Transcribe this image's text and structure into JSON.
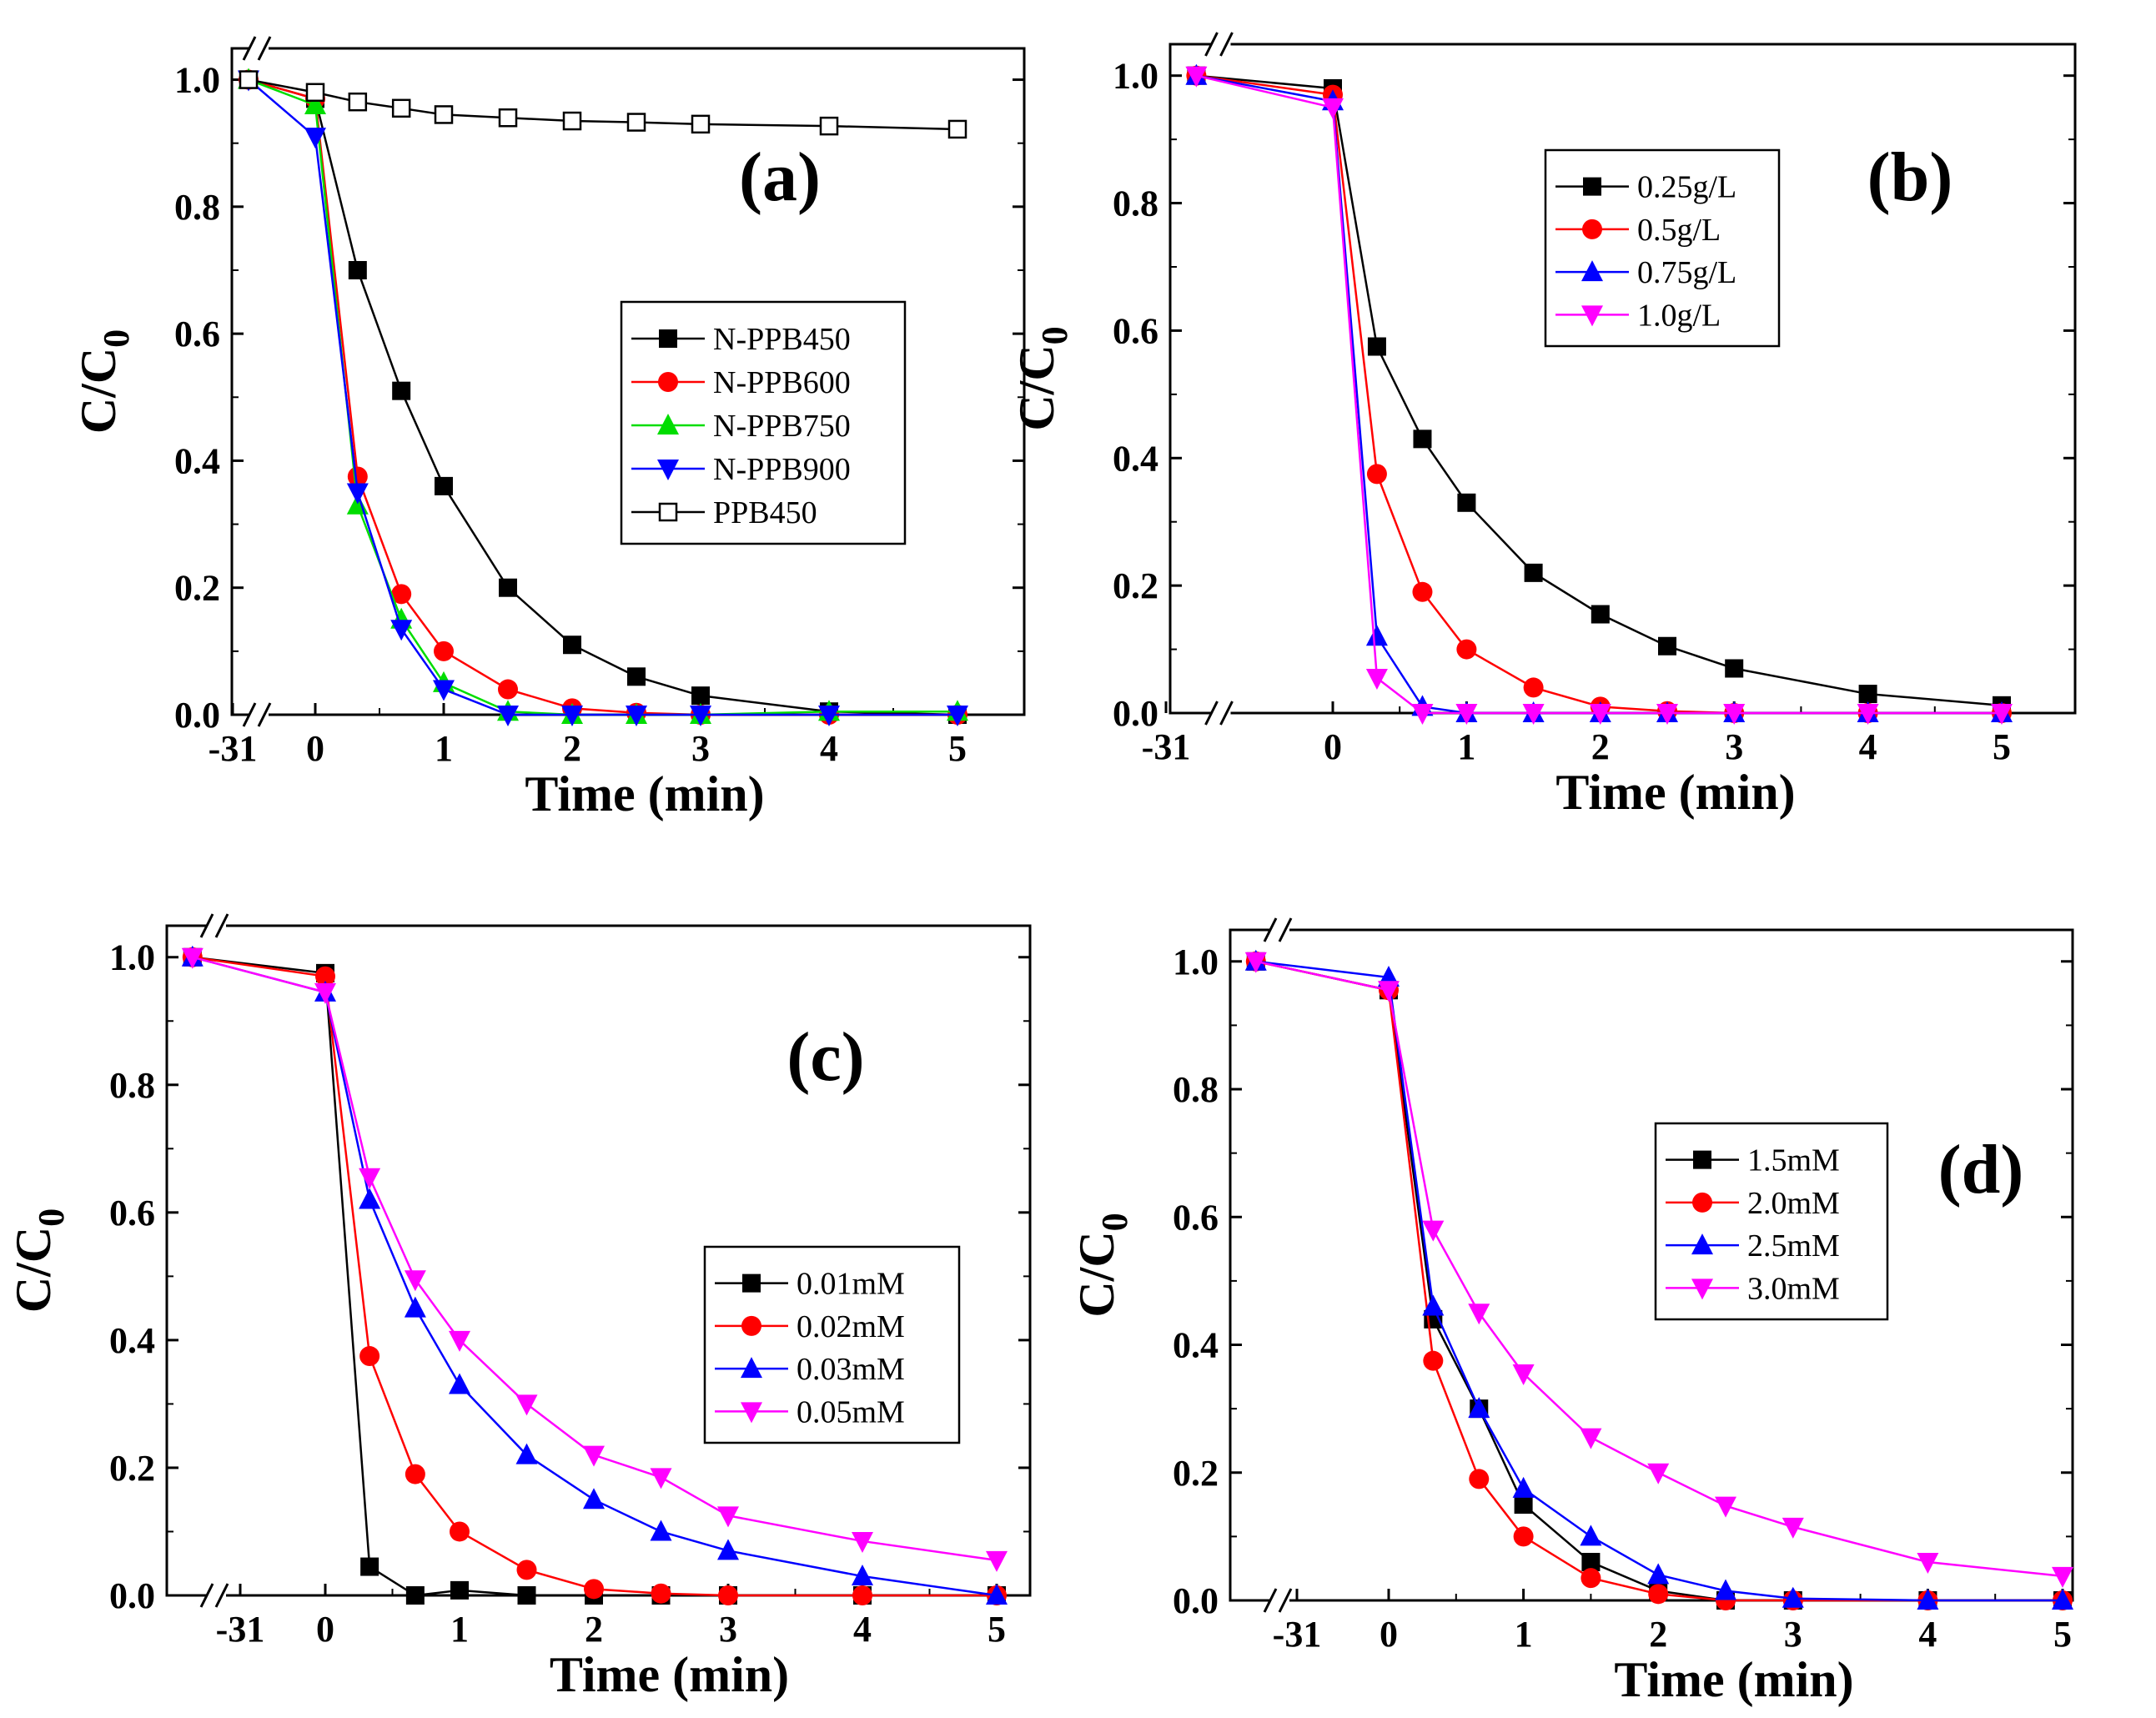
{
  "figure": {
    "panels": [
      "(a)",
      "(b)",
      "(c)",
      "(d)"
    ]
  },
  "chart_data": [
    {
      "type": "line",
      "panel_label": "(a)",
      "xlabel": "Time (min)",
      "ylabel_main": "C/C",
      "ylabel_sub": "0",
      "x_tick_labels": [
        "-31",
        "0",
        "1",
        "2",
        "3",
        "4",
        "5"
      ],
      "y_tick_labels": [
        "0.0",
        "0.2",
        "0.4",
        "0.6",
        "0.8",
        "1.0"
      ],
      "ylim": [
        0,
        1.0
      ],
      "axis_break": "between -31 and 0",
      "x": [
        -31,
        0,
        0.33,
        0.67,
        1,
        1.5,
        2,
        2.5,
        3,
        4,
        5
      ],
      "legend_position": "center-right",
      "series": [
        {
          "name": "N-PPB450",
          "color": "#000000",
          "marker": "square",
          "values": [
            1.0,
            0.97,
            0.7,
            0.51,
            0.36,
            0.2,
            0.11,
            0.06,
            0.03,
            0.005,
            0.0
          ]
        },
        {
          "name": "N-PPB600",
          "color": "#ff0000",
          "marker": "circle",
          "values": [
            1.0,
            0.97,
            0.375,
            0.19,
            0.1,
            0.04,
            0.01,
            0.003,
            0.0,
            0.0,
            0.0
          ]
        },
        {
          "name": "N-PPB750",
          "color": "#00dd00",
          "marker": "triangle-up",
          "values": [
            1.0,
            0.96,
            0.33,
            0.15,
            0.05,
            0.005,
            0.0,
            0.0,
            0.0,
            0.005,
            0.005
          ]
        },
        {
          "name": "N-PPB900",
          "color": "#0000ff",
          "marker": "triangle-down",
          "values": [
            1.0,
            0.91,
            0.35,
            0.135,
            0.04,
            0.0,
            0.0,
            0.0,
            0.0,
            0.0,
            0.0
          ]
        },
        {
          "name": "PPB450",
          "color": "#000000",
          "marker": "open-square",
          "values": [
            1.0,
            0.98,
            0.965,
            0.955,
            0.945,
            0.94,
            0.935,
            0.933,
            0.93,
            0.927,
            0.922
          ]
        }
      ]
    },
    {
      "type": "line",
      "panel_label": "(b)",
      "xlabel": "Time (min)",
      "ylabel_main": "C/C",
      "ylabel_sub": "0",
      "x_tick_labels": [
        "-31",
        "0",
        "1",
        "2",
        "3",
        "4",
        "5"
      ],
      "y_tick_labels": [
        "0.0",
        "0.2",
        "0.4",
        "0.6",
        "0.8",
        "1.0"
      ],
      "ylim": [
        0,
        1.0
      ],
      "axis_break": "between -31 and 0",
      "x": [
        -31,
        0,
        0.33,
        0.67,
        1,
        1.5,
        2,
        2.5,
        3,
        4,
        5
      ],
      "legend_position": "top-left",
      "series": [
        {
          "name": "0.25g/L",
          "color": "#000000",
          "marker": "square",
          "values": [
            1.0,
            0.98,
            0.575,
            0.43,
            0.33,
            0.22,
            0.155,
            0.105,
            0.07,
            0.03,
            0.012
          ]
        },
        {
          "name": "0.5g/L",
          "color": "#ff0000",
          "marker": "circle",
          "values": [
            1.0,
            0.97,
            0.375,
            0.19,
            0.1,
            0.04,
            0.01,
            0.003,
            0.0,
            0.0,
            0.0
          ]
        },
        {
          "name": "0.75g/L",
          "color": "#0000ff",
          "marker": "triangle-up",
          "values": [
            1.0,
            0.96,
            0.12,
            0.01,
            0.0,
            0.0,
            0.0,
            0.0,
            0.0,
            0.0,
            0.0
          ]
        },
        {
          "name": "1.0g/L",
          "color": "#ff00ff",
          "marker": "triangle-down",
          "values": [
            1.0,
            0.95,
            0.055,
            0.0,
            0.0,
            0.0,
            0.0,
            0.0,
            0.0,
            0.0,
            0.0
          ]
        }
      ]
    },
    {
      "type": "line",
      "panel_label": "(c)",
      "xlabel": "Time (min)",
      "ylabel_main": "C/C",
      "ylabel_sub": "0",
      "x_tick_labels": [
        "-31",
        "0",
        "1",
        "2",
        "3",
        "4",
        "5"
      ],
      "y_tick_labels": [
        "0.0",
        "0.2",
        "0.4",
        "0.6",
        "0.8",
        "1.0"
      ],
      "ylim": [
        0,
        1.0
      ],
      "axis_break": "between -31 and 0",
      "x": [
        -31,
        0,
        0.33,
        0.67,
        1,
        1.5,
        2,
        2.5,
        3,
        4,
        5
      ],
      "legend_position": "center-right",
      "series": [
        {
          "name": "0.01mM",
          "color": "#000000",
          "marker": "square",
          "values": [
            1.0,
            0.975,
            0.045,
            0.0,
            0.008,
            0.0,
            0.0,
            0.0,
            0.0,
            0.0,
            0.0
          ]
        },
        {
          "name": "0.02mM",
          "color": "#ff0000",
          "marker": "circle",
          "values": [
            1.0,
            0.97,
            0.375,
            0.19,
            0.1,
            0.04,
            0.01,
            0.003,
            0.0,
            0.0,
            0.0
          ]
        },
        {
          "name": "0.03mM",
          "color": "#0000ff",
          "marker": "triangle-up",
          "values": [
            1.0,
            0.945,
            0.62,
            0.45,
            0.33,
            0.22,
            0.15,
            0.1,
            0.07,
            0.03,
            0.0
          ]
        },
        {
          "name": "0.05mM",
          "color": "#ff00ff",
          "marker": "triangle-down",
          "values": [
            1.0,
            0.945,
            0.655,
            0.495,
            0.4,
            0.3,
            0.22,
            0.185,
            0.125,
            0.085,
            0.055
          ]
        }
      ]
    },
    {
      "type": "line",
      "panel_label": "(d)",
      "xlabel": "Time (min)",
      "ylabel_main": "C/C",
      "ylabel_sub": "0",
      "x_tick_labels": [
        "-31",
        "0",
        "1",
        "2",
        "3",
        "4",
        "5"
      ],
      "y_tick_labels": [
        "0.0",
        "0.2",
        "0.4",
        "0.6",
        "0.8",
        "1.0"
      ],
      "ylim": [
        0,
        1.0
      ],
      "axis_break": "between -31 and 0",
      "x": [
        -31,
        0,
        0.33,
        0.67,
        1,
        1.5,
        2,
        2.5,
        3,
        4,
        5
      ],
      "legend_position": "center-left",
      "series": [
        {
          "name": "1.5mM",
          "color": "#000000",
          "marker": "square",
          "values": [
            1.0,
            0.955,
            0.44,
            0.3,
            0.15,
            0.06,
            0.015,
            0.0,
            0.0,
            0.0,
            0.0
          ]
        },
        {
          "name": "2.0mM",
          "color": "#ff0000",
          "marker": "circle",
          "values": [
            1.0,
            0.955,
            0.375,
            0.19,
            0.1,
            0.035,
            0.01,
            0.0,
            0.0,
            0.0,
            0.0
          ]
        },
        {
          "name": "2.5mM",
          "color": "#0000ff",
          "marker": "triangle-up",
          "values": [
            1.0,
            0.975,
            0.46,
            0.3,
            0.175,
            0.1,
            0.04,
            0.015,
            0.003,
            0.0,
            0.0
          ]
        },
        {
          "name": "3.0mM",
          "color": "#ff00ff",
          "marker": "triangle-down",
          "values": [
            1.0,
            0.955,
            0.58,
            0.45,
            0.355,
            0.255,
            0.2,
            0.148,
            0.115,
            0.06,
            0.038
          ]
        }
      ]
    }
  ]
}
